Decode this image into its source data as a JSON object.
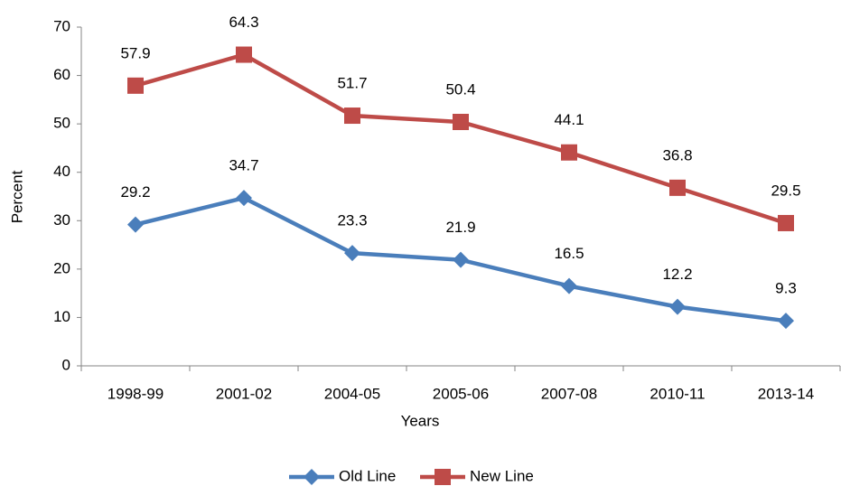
{
  "chart_data": {
    "type": "line",
    "x_label": "Years",
    "y_label": "Percent",
    "categories": [
      "1998-99",
      "2001-02",
      "2004-05",
      "2005-06",
      "2007-08",
      "2010-11",
      "2013-14"
    ],
    "series": [
      {
        "name": "Old Line",
        "color": "#4a7ebb",
        "marker": "diamond",
        "values": [
          29.2,
          34.7,
          23.3,
          21.9,
          16.5,
          12.2,
          9.3
        ]
      },
      {
        "name": "New Line",
        "color": "#be4b48",
        "marker": "square",
        "values": [
          57.9,
          64.3,
          51.7,
          50.4,
          44.1,
          36.8,
          29.5
        ]
      }
    ],
    "ylim": [
      0,
      70
    ],
    "yticks": [
      0,
      10,
      20,
      30,
      40,
      50,
      60,
      70
    ],
    "grid": false,
    "legend": "bottom"
  }
}
